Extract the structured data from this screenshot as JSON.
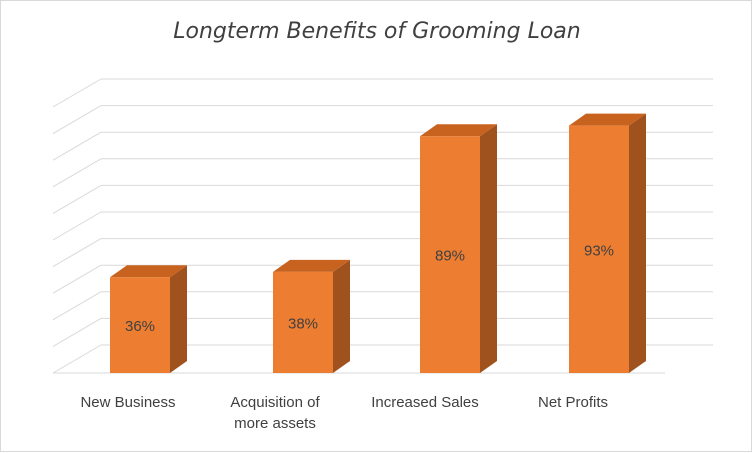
{
  "chart_data": {
    "type": "bar",
    "title": "Longterm Benefits of Grooming Loan",
    "categories": [
      "New Business",
      "Acquisition of more assets",
      "Increased Sales",
      "Net Profits"
    ],
    "category_lines": [
      [
        "New Business"
      ],
      [
        "Acquisition of",
        "more assets"
      ],
      [
        "Increased Sales"
      ],
      [
        "Net Profits"
      ]
    ],
    "values": [
      36,
      38,
      89,
      93
    ],
    "data_labels": [
      "36%",
      "38%",
      "89%",
      "93%"
    ],
    "ylim": [
      0,
      100
    ],
    "y_gridlines": 10,
    "grid": true,
    "legend": "none",
    "style": "3d-column",
    "colors": {
      "front": "#ED7D31",
      "side": "#A0521E",
      "top": "#C8621F",
      "grid": "#D9D9D9",
      "text": "#404040"
    }
  }
}
